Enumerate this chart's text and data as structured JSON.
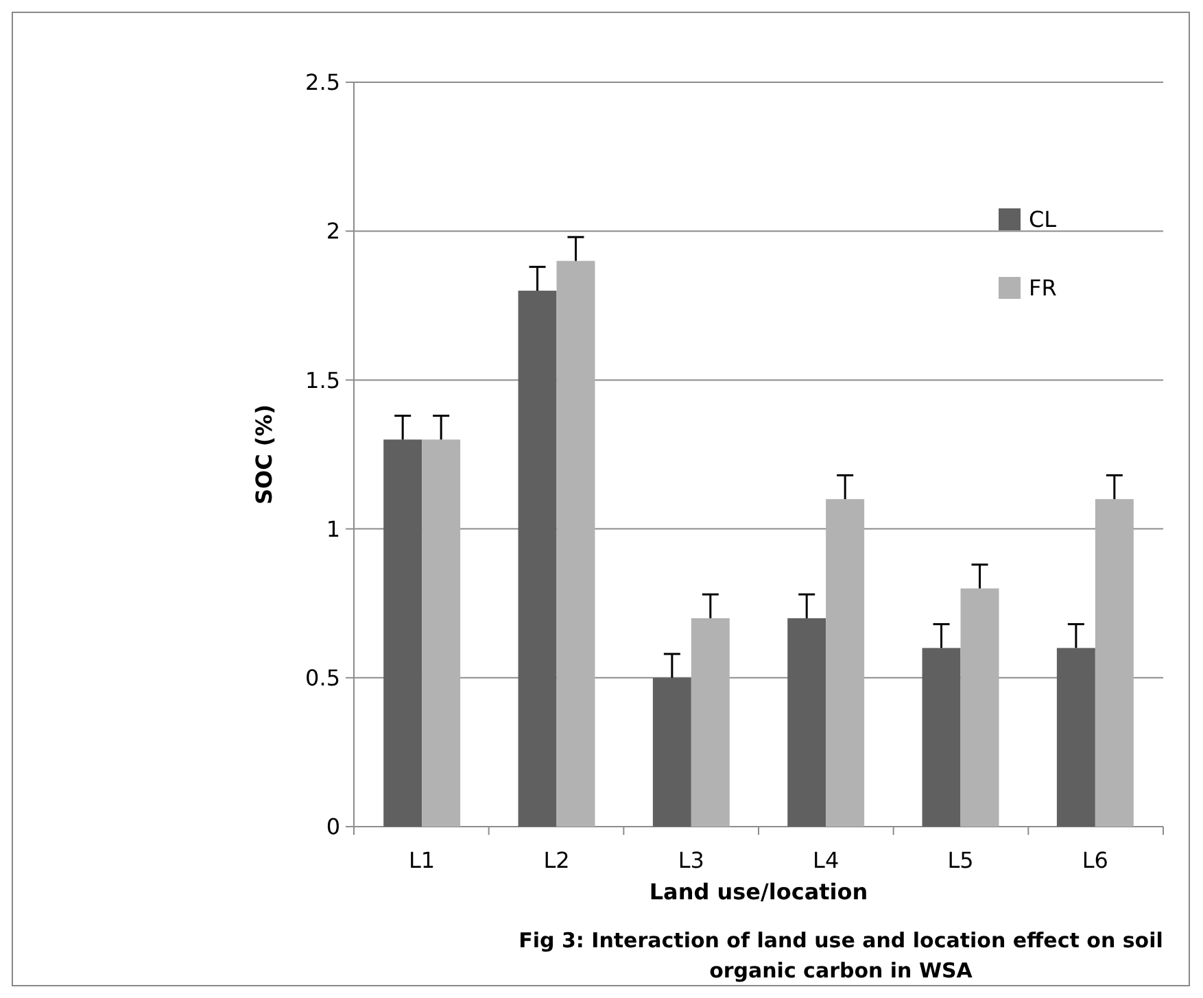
{
  "chart_data": {
    "type": "bar",
    "title": "Fig 3: Interaction of land use and location  effect on soil organic carbon in WSA",
    "xlabel": "Land use/location",
    "ylabel": "SOC  (%)",
    "categories": [
      "L1",
      "L2",
      "L3",
      "L4",
      "L5",
      "L6"
    ],
    "series": [
      {
        "name": "CL",
        "color": "#606060",
        "values": [
          1.3,
          1.8,
          0.5,
          0.7,
          0.6,
          0.6
        ],
        "errors": [
          0.08,
          0.08,
          0.08,
          0.08,
          0.08,
          0.08
        ]
      },
      {
        "name": "FR",
        "color": "#b2b2b2",
        "values": [
          1.3,
          1.9,
          0.7,
          1.1,
          0.8,
          1.1
        ],
        "errors": [
          0.08,
          0.08,
          0.08,
          0.08,
          0.08,
          0.08
        ]
      }
    ],
    "ylim": [
      0,
      2.5
    ],
    "yticks": [
      0,
      0.5,
      1,
      1.5,
      2,
      2.5
    ],
    "grid": "y",
    "legend": "top right"
  }
}
